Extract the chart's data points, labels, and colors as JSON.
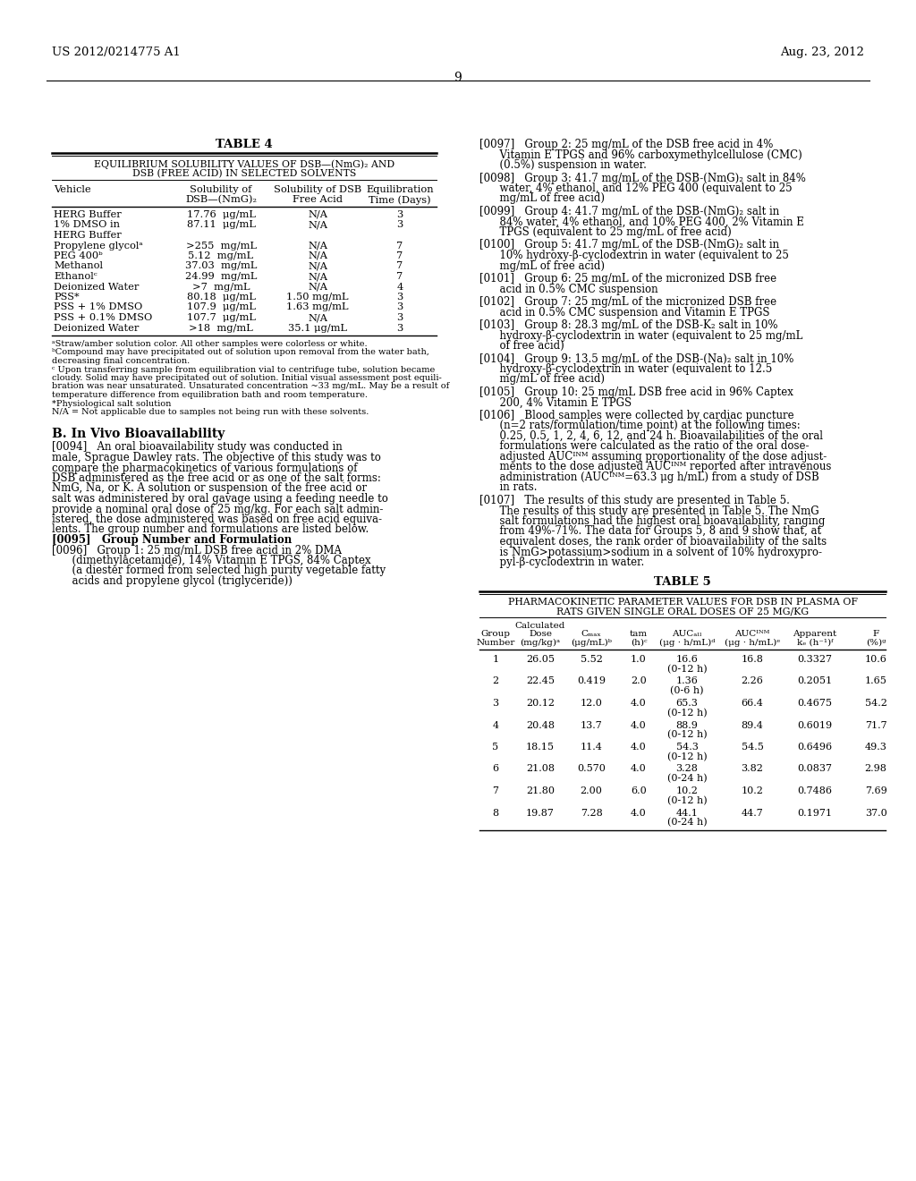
{
  "page_number": "9",
  "patent_left": "US 2012/0214775 A1",
  "patent_right": "Aug. 23, 2012",
  "bg_color": "#ffffff"
}
